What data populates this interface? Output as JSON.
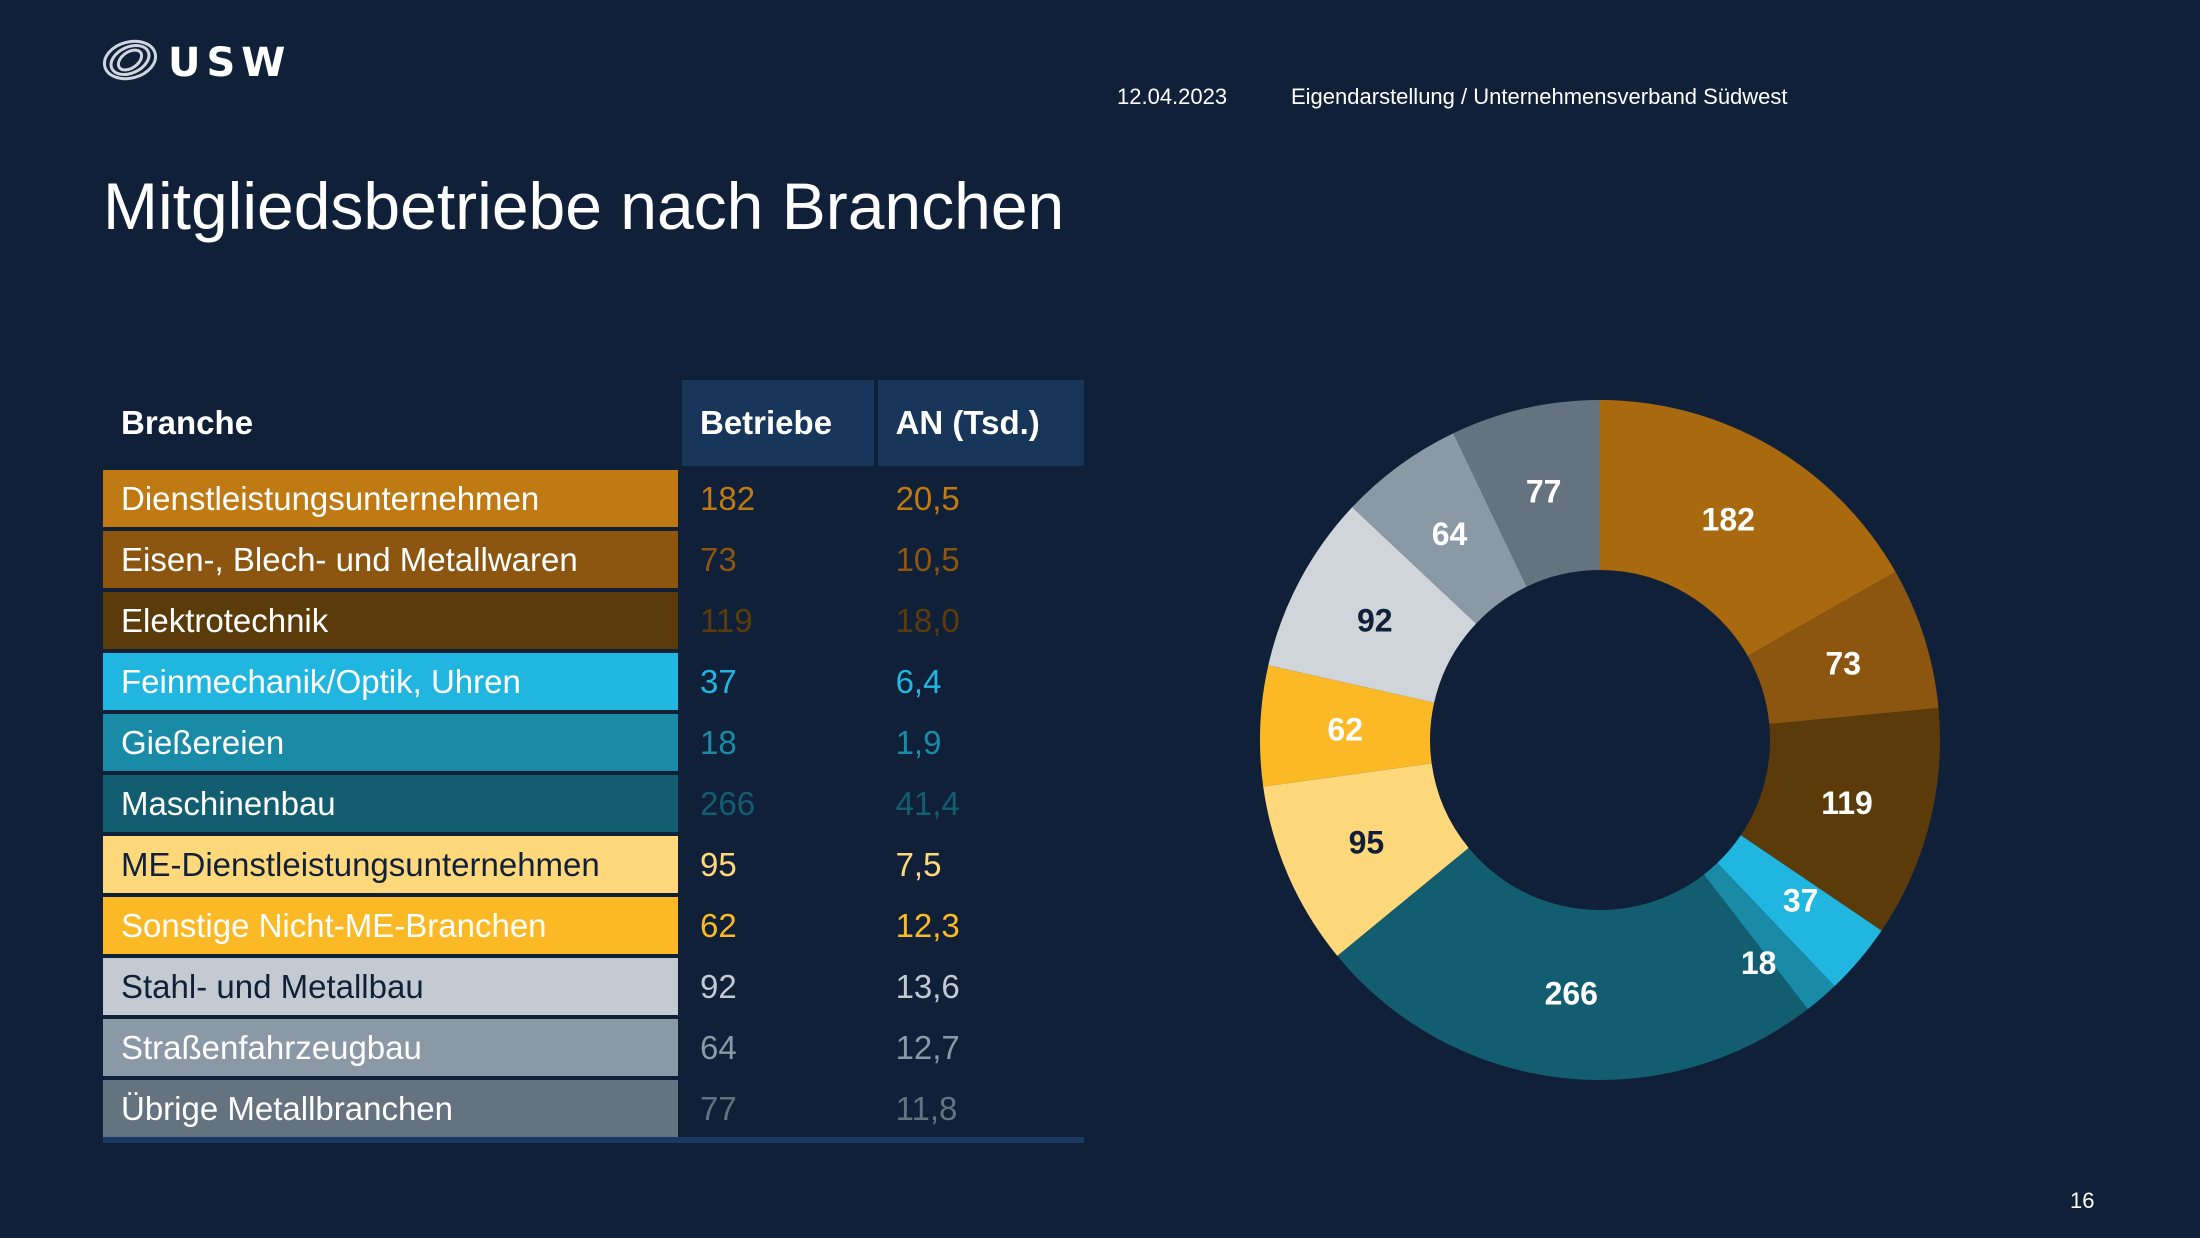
{
  "header": {
    "date": "12.04.2023",
    "source": "Eigendarstellung / Unternehmensverband Südwest",
    "logo_text": "USW"
  },
  "title": "Mitgliedsbetriebe nach Branchen",
  "page_number": "16",
  "table": {
    "headers": [
      "Branche",
      "Betriebe",
      "AN (Tsd.)"
    ],
    "rows": [
      {
        "branche": "Dienstleistungsunternehmen",
        "betriebe": "182",
        "an": "20,5",
        "color": "#bf7a13",
        "label_color": "#ffffff"
      },
      {
        "branche": "Eisen-, Blech- und Metallwaren",
        "betriebe": "73",
        "an": "10,5",
        "color": "#8c5510",
        "label_color": "#ffffff"
      },
      {
        "branche": "Elektrotechnik",
        "betriebe": "119",
        "an": "18,0",
        "color": "#5c3b0b",
        "label_color": "#ffffff"
      },
      {
        "branche": "Feinmechanik/Optik, Uhren",
        "betriebe": "37",
        "an": "6,4",
        "color": "#20b6e0",
        "label_color": "#ffffff"
      },
      {
        "branche": "Gießereien",
        "betriebe": "18",
        "an": "1,9",
        "color": "#1a8ba6",
        "label_color": "#ffffff"
      },
      {
        "branche": "Maschinenbau",
        "betriebe": "266",
        "an": "41,4",
        "color": "#135d70",
        "label_color": "#ffffff"
      },
      {
        "branche": "ME-Dienstleistungsunternehmen",
        "betriebe": "95",
        "an": "7,5",
        "color": "#ffd87c",
        "label_color": "#0f2038"
      },
      {
        "branche": "Sonstige Nicht-ME-Branchen",
        "betriebe": "62",
        "an": "12,3",
        "color": "#fbb926",
        "label_color": "#ffffff"
      },
      {
        "branche": "Stahl- und Metallbau",
        "betriebe": "92",
        "an": "13,6",
        "color": "#c3cad2",
        "label_color": "#0f2038"
      },
      {
        "branche": "Straßenfahrzeugbau",
        "betriebe": "64",
        "an": "12,7",
        "color": "#8b98a5",
        "label_color": "#ffffff"
      },
      {
        "branche": "Übrige Metallbranchen",
        "betriebe": "77",
        "an": "11,8",
        "color": "#65727f",
        "label_color": "#ffffff"
      }
    ]
  },
  "chart_data": {
    "type": "pie",
    "donut": true,
    "start": "top",
    "direction": "clockwise",
    "categories": [
      "Dienstleistungsunternehmen",
      "Eisen-, Blech- und Metallwaren",
      "Elektrotechnik",
      "Feinmechanik/Optik, Uhren",
      "Gießereien",
      "Maschinenbau",
      "ME-Dienstleistungsunternehmen",
      "Sonstige Nicht-ME-Branchen",
      "Stahl- und Metallbau",
      "Straßenfahrzeugbau",
      "Übrige Metallbranchen"
    ],
    "values": [
      182,
      73,
      119,
      37,
      18,
      266,
      95,
      62,
      92,
      64,
      77
    ],
    "colors": [
      "#a9690f",
      "#8c5510",
      "#5c3b0b",
      "#20b6e0",
      "#1a8ba6",
      "#135d70",
      "#ffd87c",
      "#fbb926",
      "#d0d5da",
      "#8b98a5",
      "#65727f"
    ],
    "label_colors": [
      "#ffffff",
      "#ffffff",
      "#ffffff",
      "#ffffff",
      "#ffffff",
      "#ffffff",
      "#0f2038",
      "#ffffff",
      "#0f2038",
      "#ffffff",
      "#ffffff"
    ],
    "title": "",
    "legend": "none"
  }
}
